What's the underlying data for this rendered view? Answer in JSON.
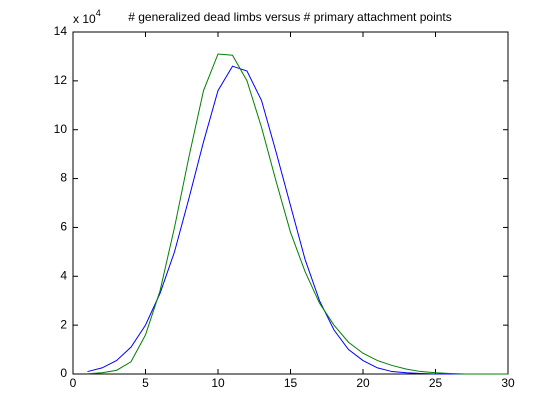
{
  "chart_data": {
    "type": "line",
    "title": "# generalized dead limbs versus # primary attachment points",
    "y_multiplier_base": "x 10",
    "y_multiplier_power": "4",
    "x": [
      1,
      2,
      3,
      4,
      5,
      6,
      7,
      8,
      9,
      10,
      11,
      12,
      13,
      14,
      15,
      16,
      17,
      18,
      19,
      20,
      21,
      22,
      23,
      24,
      25,
      26,
      27,
      28,
      29,
      30
    ],
    "series": [
      {
        "color": "#0000ff",
        "values": [
          0.1,
          0.25,
          0.55,
          1.1,
          2.0,
          3.3,
          5.0,
          7.2,
          9.5,
          11.6,
          12.6,
          12.4,
          11.2,
          9.1,
          6.9,
          4.7,
          3.0,
          1.8,
          1.0,
          0.55,
          0.25,
          0.1,
          0.05,
          0.02,
          0,
          0,
          0,
          0,
          0,
          0
        ]
      },
      {
        "color": "#008000",
        "values": [
          0.01,
          0.05,
          0.15,
          0.5,
          1.6,
          3.4,
          6.0,
          8.9,
          11.6,
          13.1,
          13.05,
          12.0,
          10.1,
          7.9,
          5.8,
          4.2,
          2.9,
          2.0,
          1.3,
          0.85,
          0.55,
          0.35,
          0.2,
          0.1,
          0.05,
          0.02,
          0,
          0,
          0,
          0
        ]
      }
    ],
    "xlim": [
      0,
      30
    ],
    "xticks": [
      0,
      5,
      10,
      15,
      20,
      25,
      30
    ],
    "ylim": [
      0,
      14
    ],
    "yticks": [
      0,
      2,
      4,
      6,
      8,
      10,
      12,
      14
    ]
  }
}
